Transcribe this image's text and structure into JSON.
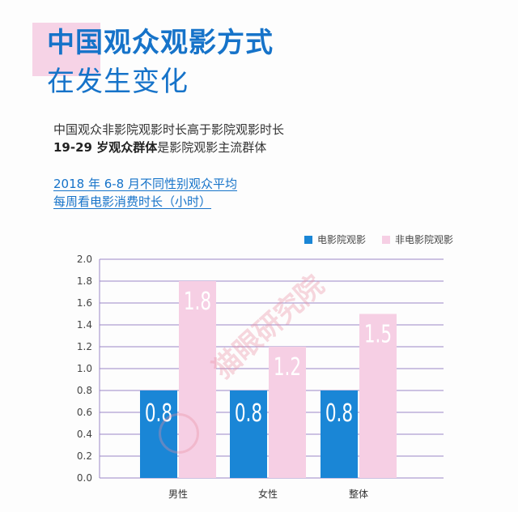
{
  "header": {
    "title_line1": "中国观众观影方式",
    "title_line2": "在发生变化"
  },
  "description": {
    "line1": "中国观众非影院观影时长高于影院观影时长",
    "line2_bold": "19-29 岁观众群体",
    "line2_rest": "是影院观影主流群体"
  },
  "subtitle": {
    "line1": "2018 年 6-8 月不同性别观众平均",
    "line2": "每周看电影消费时长（小时）"
  },
  "watermark": "猫眼研究院",
  "chart_data": {
    "type": "bar",
    "categories": [
      "男性",
      "女性",
      "整体"
    ],
    "series": [
      {
        "name": "电影院观影",
        "values": [
          0.8,
          0.8,
          0.8
        ],
        "color": "#1a86d6"
      },
      {
        "name": "非电影院观影",
        "values": [
          1.8,
          1.2,
          1.5
        ],
        "color": "#f6cfe4"
      }
    ],
    "ylim": [
      0,
      2.0
    ],
    "yticks": [
      "0.0",
      "0.2",
      "0.4",
      "0.6",
      "0.8",
      "1.0",
      "1.2",
      "1.4",
      "1.6",
      "1.8",
      "2.0"
    ],
    "data_labels": true,
    "grid": true,
    "legend": "top-right",
    "axis_color": "#9a86c6"
  }
}
